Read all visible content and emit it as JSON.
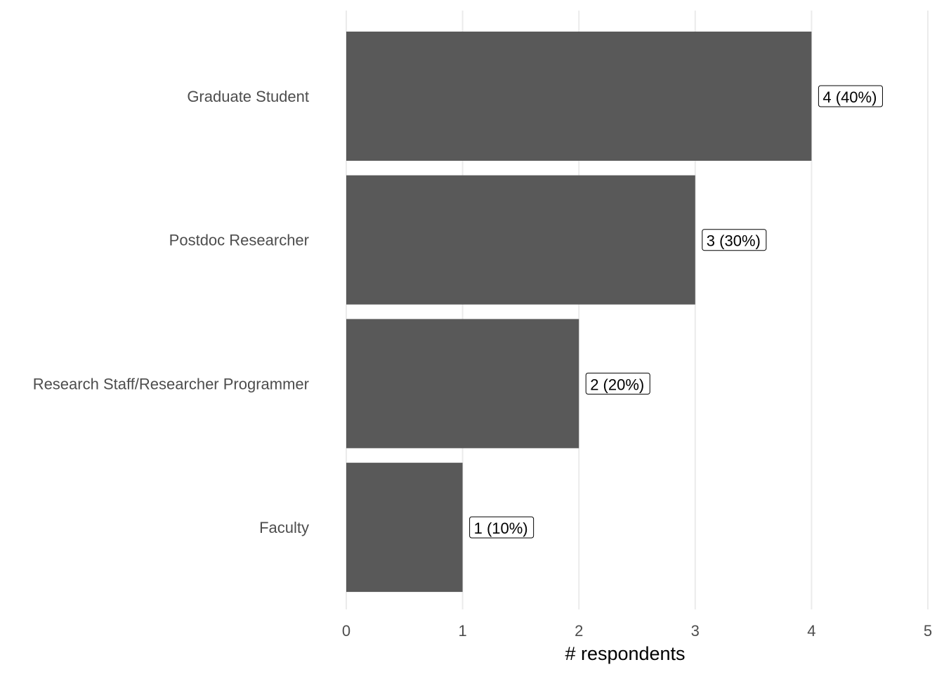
{
  "chart_data": {
    "type": "bar",
    "orientation": "horizontal",
    "categories": [
      "Graduate Student",
      "Postdoc Researcher",
      "Research Staff/Researcher Programmer",
      "Faculty"
    ],
    "values": [
      4,
      3,
      2,
      1
    ],
    "data_labels": [
      "4 (40%)",
      "3 (30%)",
      "2 (20%)",
      "1 (10%)"
    ],
    "xlabel": "# respondents",
    "ylabel": "",
    "xlim": [
      0,
      5
    ],
    "x_ticks": [
      "0",
      "1",
      "2",
      "3",
      "4",
      "5"
    ],
    "grid": "vertical",
    "bar_color": "#595959",
    "legend": "none"
  }
}
